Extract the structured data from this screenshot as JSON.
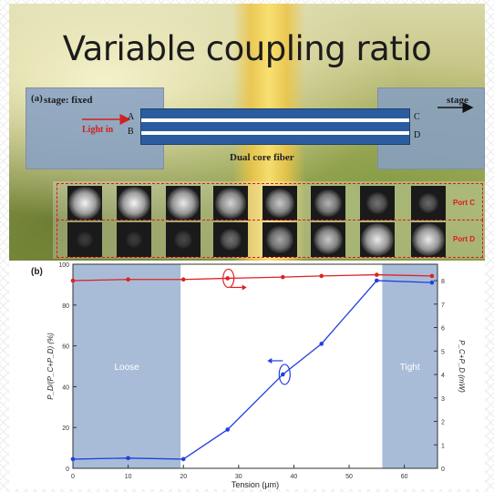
{
  "slide": {
    "title": "Variable coupling ratio"
  },
  "panel_a": {
    "label": "(a)",
    "stage_fixed": "stage: fixed",
    "stage_moving": "stage",
    "light_in": "Light in",
    "ports": [
      "A",
      "B",
      "C",
      "D"
    ],
    "fiber_caption": "Dual core fiber",
    "port_c_label": "Port C",
    "port_d_label": "Port D",
    "image_count": 8,
    "port_c_intensity": [
      0.95,
      0.95,
      0.9,
      0.8,
      0.75,
      0.65,
      0.35,
      0.3
    ],
    "port_d_intensity": [
      0.1,
      0.1,
      0.15,
      0.35,
      0.6,
      0.75,
      0.9,
      0.9
    ]
  },
  "chart_data": {
    "type": "line",
    "panel_label": "(b)",
    "xlabel": "Tension (μm)",
    "ylabel_left": "P_D/(P_C+P_D) (%)",
    "ylabel_right": "P_C+P_D (mW)",
    "xlim": [
      0,
      66
    ],
    "ylim_left": [
      0,
      100
    ],
    "ylim_right": [
      0,
      8.7
    ],
    "xticks": [
      0,
      10,
      20,
      30,
      40,
      50,
      60
    ],
    "yticks_left": [
      0,
      20,
      40,
      60,
      80,
      100
    ],
    "yticks_right": [
      0,
      1,
      2,
      3,
      4,
      5,
      6,
      7,
      8
    ],
    "regions": [
      {
        "label": "Loose",
        "x": [
          0,
          19.5
        ],
        "color": "#a8bcd8"
      },
      {
        "label": "Tight",
        "x": [
          56,
          66
        ],
        "color": "#a8bcd8"
      }
    ],
    "series": [
      {
        "axis": "right",
        "color": "#e02020",
        "x": [
          0,
          10,
          20,
          28,
          38,
          45,
          55,
          65
        ],
        "y": [
          8.0,
          8.05,
          8.05,
          8.1,
          8.15,
          8.2,
          8.25,
          8.2
        ]
      },
      {
        "axis": "left",
        "color": "#2040e0",
        "x": [
          0,
          10,
          20,
          28,
          38,
          45,
          55,
          65
        ],
        "y": [
          4.5,
          5,
          4.5,
          19,
          46,
          61,
          92,
          91
        ]
      }
    ]
  }
}
